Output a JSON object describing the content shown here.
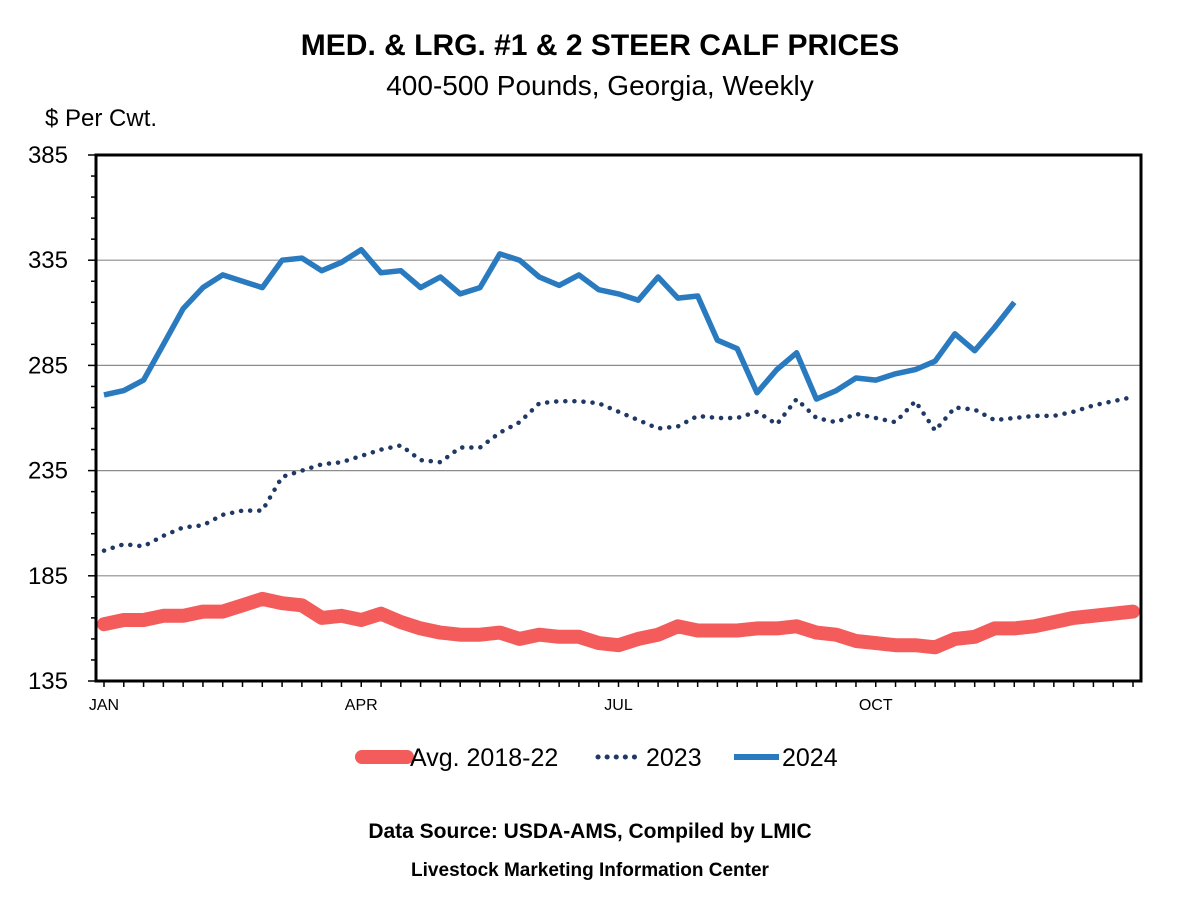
{
  "chart_data": {
    "type": "line",
    "title": "MED. & LRG. #1 & 2 STEER CALF PRICES",
    "subtitle": "400-500 Pounds, Georgia, Weekly",
    "ylabel": "$ Per Cwt.",
    "ylim": [
      135,
      385
    ],
    "yticks": [
      "135",
      "185",
      "235",
      "285",
      "335",
      "385"
    ],
    "x_tick_labels": [
      "JAN",
      "APR",
      "JUL",
      "OCT"
    ],
    "x_tick_weeks": [
      1,
      14,
      27,
      40
    ],
    "weeks_total": 53,
    "grid": true,
    "legend_position": "bottom",
    "series": [
      {
        "name": "Avg. 2018-22",
        "color": "#f45b5b",
        "style": "solid-thick",
        "values": [
          162,
          164,
          164,
          166,
          166,
          168,
          168,
          171,
          174,
          172,
          171,
          165,
          166,
          164,
          167,
          163,
          160,
          158,
          157,
          157,
          158,
          155,
          157,
          156,
          156,
          153,
          152,
          155,
          157,
          161,
          159,
          159,
          159,
          160,
          160,
          161,
          158,
          157,
          154,
          153,
          152,
          152,
          151,
          155,
          156,
          160,
          160,
          161,
          163,
          165,
          166,
          167,
          168
        ]
      },
      {
        "name": "2023",
        "color": "#1f3864",
        "style": "dotted",
        "values": [
          197,
          200,
          199,
          204,
          208,
          209,
          214,
          216,
          216,
          232,
          235,
          238,
          239,
          242,
          245,
          247,
          240,
          239,
          246,
          246,
          253,
          258,
          267,
          268,
          268,
          267,
          263,
          259,
          255,
          256,
          261,
          260,
          260,
          263,
          257,
          269,
          260,
          258,
          262,
          260,
          258,
          268,
          254,
          265,
          264,
          259,
          260,
          261,
          261,
          263,
          266,
          268,
          270
        ]
      },
      {
        "name": "2024",
        "color": "#2a7abf",
        "style": "solid",
        "values": [
          271,
          273,
          278,
          295,
          312,
          322,
          328,
          325,
          322,
          335,
          336,
          330,
          334,
          340,
          329,
          330,
          322,
          327,
          319,
          322,
          338,
          335,
          327,
          323,
          328,
          321,
          319,
          316,
          327,
          317,
          318,
          297,
          293,
          272,
          283,
          291,
          269,
          273,
          279,
          278,
          281,
          283,
          287,
          300,
          292,
          303,
          315
        ]
      }
    ]
  },
  "footer": {
    "source": "Data Source:  USDA-AMS, Compiled by LMIC",
    "org": "Livestock Marketing Information Center"
  }
}
